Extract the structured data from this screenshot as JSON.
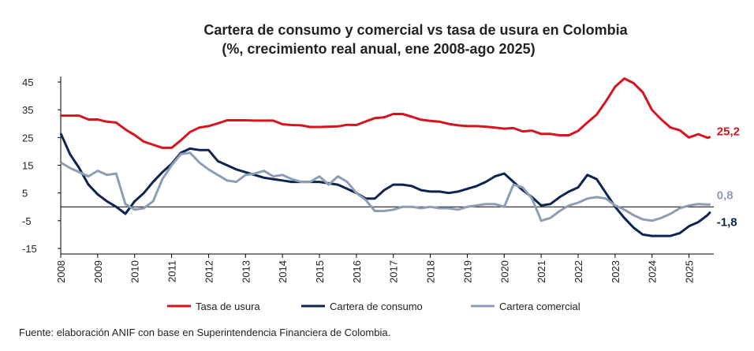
{
  "chart_data": {
    "type": "line",
    "title": "Cartera de consumo y comercial vs tasa de usura en Colombia",
    "subtitle": "(%, crecimiento real anual, ene 2008-ago 2025)",
    "source": "Fuente: elaboración ANIF con base en Superintendencia Financiera de Colombia.",
    "xlim": [
      2008,
      2025.67
    ],
    "xticks": [
      2008,
      2009,
      2010,
      2011,
      2012,
      2013,
      2014,
      2015,
      2016,
      2017,
      2018,
      2019,
      2020,
      2021,
      2022,
      2023,
      2024,
      2025
    ],
    "ylim": [
      -17,
      47
    ],
    "yticks": [
      45,
      35,
      25,
      15,
      5,
      -5,
      -15
    ],
    "legend": "bottom",
    "x": [
      2008,
      2008.25,
      2008.5,
      2008.75,
      2009,
      2009.25,
      2009.5,
      2009.75,
      2010,
      2010.25,
      2010.5,
      2010.75,
      2011,
      2011.25,
      2011.5,
      2011.75,
      2012,
      2012.25,
      2012.5,
      2012.75,
      2013,
      2013.25,
      2013.5,
      2013.75,
      2014,
      2014.25,
      2014.5,
      2014.75,
      2015,
      2015.25,
      2015.5,
      2015.75,
      2016,
      2016.25,
      2016.5,
      2016.75,
      2017,
      2017.25,
      2017.5,
      2017.75,
      2018,
      2018.25,
      2018.5,
      2018.75,
      2019,
      2019.25,
      2019.5,
      2019.75,
      2020,
      2020.25,
      2020.5,
      2020.75,
      2021,
      2021.25,
      2021.5,
      2021.75,
      2022,
      2022.25,
      2022.5,
      2022.75,
      2023,
      2023.25,
      2023.5,
      2023.75,
      2024,
      2024.25,
      2024.5,
      2024.75,
      2025,
      2025.25,
      2025.5,
      2025.58
    ],
    "series": [
      {
        "name": "Tasa de usura",
        "color": "#d7141e",
        "values": [
          32.9,
          32.9,
          32.9,
          31.5,
          31.5,
          30.7,
          30.4,
          27.9,
          25.9,
          23.5,
          22.4,
          21.3,
          21.3,
          24.0,
          27.0,
          28.6,
          29.1,
          30.1,
          31.2,
          31.2,
          31.2,
          31.1,
          31.1,
          31.1,
          29.8,
          29.5,
          29.4,
          28.8,
          28.8,
          28.9,
          29.0,
          29.6,
          29.5,
          30.8,
          32.0,
          32.3,
          33.5,
          33.5,
          32.5,
          31.4,
          31.0,
          30.7,
          29.9,
          29.4,
          29.1,
          29.1,
          28.9,
          28.6,
          28.2,
          28.4,
          27.2,
          27.5,
          26.3,
          26.3,
          25.8,
          25.8,
          27.4,
          30.4,
          33.3,
          38.0,
          43.3,
          46.3,
          44.6,
          41.3,
          34.9,
          31.5,
          28.6,
          27.6,
          25.0,
          26.2,
          24.9,
          25.2
        ],
        "value_labels": [
          null,
          null,
          null,
          null,
          null,
          null,
          null,
          null,
          null,
          null,
          null,
          null,
          null,
          null,
          null,
          null,
          null,
          null,
          null,
          null,
          null,
          null,
          null,
          null,
          null,
          null,
          null,
          null,
          null,
          null,
          null,
          null,
          null,
          null,
          null,
          null,
          null,
          null,
          null,
          null,
          null,
          null,
          null,
          null,
          null,
          null,
          null,
          null,
          null,
          null,
          null,
          null,
          null,
          null,
          null,
          null,
          null,
          null,
          null,
          null,
          null,
          null,
          null,
          null,
          null,
          null,
          null,
          null,
          null,
          null,
          null,
          "25,2"
        ]
      },
      {
        "name": "Cartera de consumo",
        "color": "#0d2350",
        "values": [
          26.5,
          19,
          14,
          8,
          4.5,
          2,
          0,
          -2.5,
          2,
          5,
          9,
          12.5,
          15.5,
          19.5,
          21,
          20.5,
          20.5,
          16.5,
          15,
          13.5,
          12.5,
          11.5,
          10.5,
          10,
          9.5,
          9,
          9,
          9,
          9,
          8.5,
          8,
          6.5,
          5,
          3,
          3,
          6,
          8,
          8,
          7.5,
          6,
          5.5,
          5.5,
          5,
          5.5,
          6.5,
          7.5,
          9,
          11,
          12,
          9,
          6,
          3.5,
          0.5,
          1,
          3.5,
          5.5,
          7,
          11.5,
          10,
          5,
          0,
          -4,
          -7.5,
          -10,
          -10.5,
          -10.5,
          -10.5,
          -9.5,
          -7,
          -5.5,
          -3,
          -1.8
        ],
        "value_labels": [
          null,
          null,
          null,
          null,
          null,
          null,
          null,
          null,
          null,
          null,
          null,
          null,
          null,
          null,
          null,
          null,
          null,
          null,
          null,
          null,
          null,
          null,
          null,
          null,
          null,
          null,
          null,
          null,
          null,
          null,
          null,
          null,
          null,
          null,
          null,
          null,
          null,
          null,
          null,
          null,
          null,
          null,
          null,
          null,
          null,
          null,
          null,
          null,
          null,
          null,
          null,
          null,
          null,
          null,
          null,
          null,
          null,
          null,
          null,
          null,
          null,
          null,
          null,
          null,
          null,
          null,
          null,
          null,
          null,
          null,
          null,
          "-1,8"
        ]
      },
      {
        "name": "Cartera comercial",
        "color": "#8c9db5",
        "values": [
          16,
          14,
          12.5,
          11,
          13,
          11.5,
          12,
          1,
          -1,
          -0.5,
          2,
          10,
          15,
          19,
          19.5,
          16,
          13.5,
          11.5,
          9.5,
          9,
          11.5,
          12,
          13,
          11,
          11.5,
          10,
          9,
          9,
          11,
          8,
          11,
          9,
          5,
          2.5,
          -1.5,
          -1.5,
          -1,
          0,
          0,
          -0.5,
          0,
          -0.5,
          -0.5,
          -1,
          0,
          0.5,
          1,
          1,
          0,
          8,
          7,
          3,
          -5,
          -4,
          -1.5,
          0.5,
          1.5,
          3,
          3.5,
          3,
          0.5,
          -1,
          -3,
          -4.5,
          -5,
          -4,
          -2.5,
          -0.5,
          0.5,
          1,
          0.8,
          0.8
        ],
        "value_labels": [
          null,
          null,
          null,
          null,
          null,
          null,
          null,
          null,
          null,
          null,
          null,
          null,
          null,
          null,
          null,
          null,
          null,
          null,
          null,
          null,
          null,
          null,
          null,
          null,
          null,
          null,
          null,
          null,
          null,
          null,
          null,
          null,
          null,
          null,
          null,
          null,
          null,
          null,
          null,
          null,
          null,
          null,
          null,
          null,
          null,
          null,
          null,
          null,
          null,
          null,
          null,
          null,
          null,
          null,
          null,
          null,
          null,
          null,
          null,
          null,
          null,
          null,
          null,
          null,
          null,
          null,
          null,
          null,
          null,
          null,
          null,
          "0,8"
        ]
      }
    ]
  }
}
